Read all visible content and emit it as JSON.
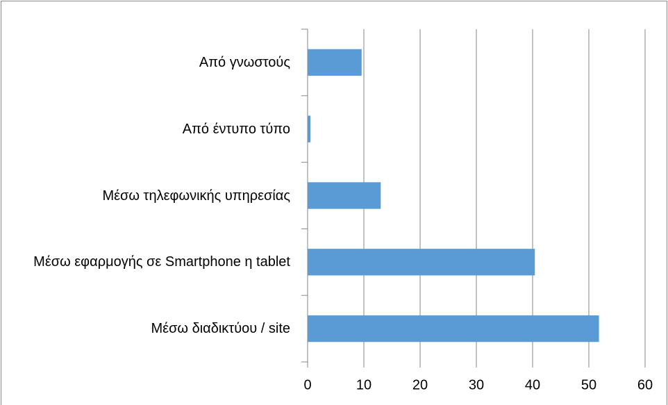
{
  "chart_data": {
    "type": "bar",
    "orientation": "horizontal",
    "categories": [
      "Από γνωστούς",
      "Από έντυπο τύπο",
      "Μέσω τηλεφωνικής υπηρεσίας",
      "Μέσω εφαρμογής σε Smartphone η tablet",
      "Μέσω διαδικτύου / site"
    ],
    "values": [
      9.6,
      0.5,
      13,
      40.4,
      51.8
    ],
    "color": "#5b9bd5",
    "xlim": [
      0,
      60
    ],
    "xticks": [
      0,
      10,
      20,
      30,
      40,
      50,
      60
    ],
    "grid": true
  }
}
